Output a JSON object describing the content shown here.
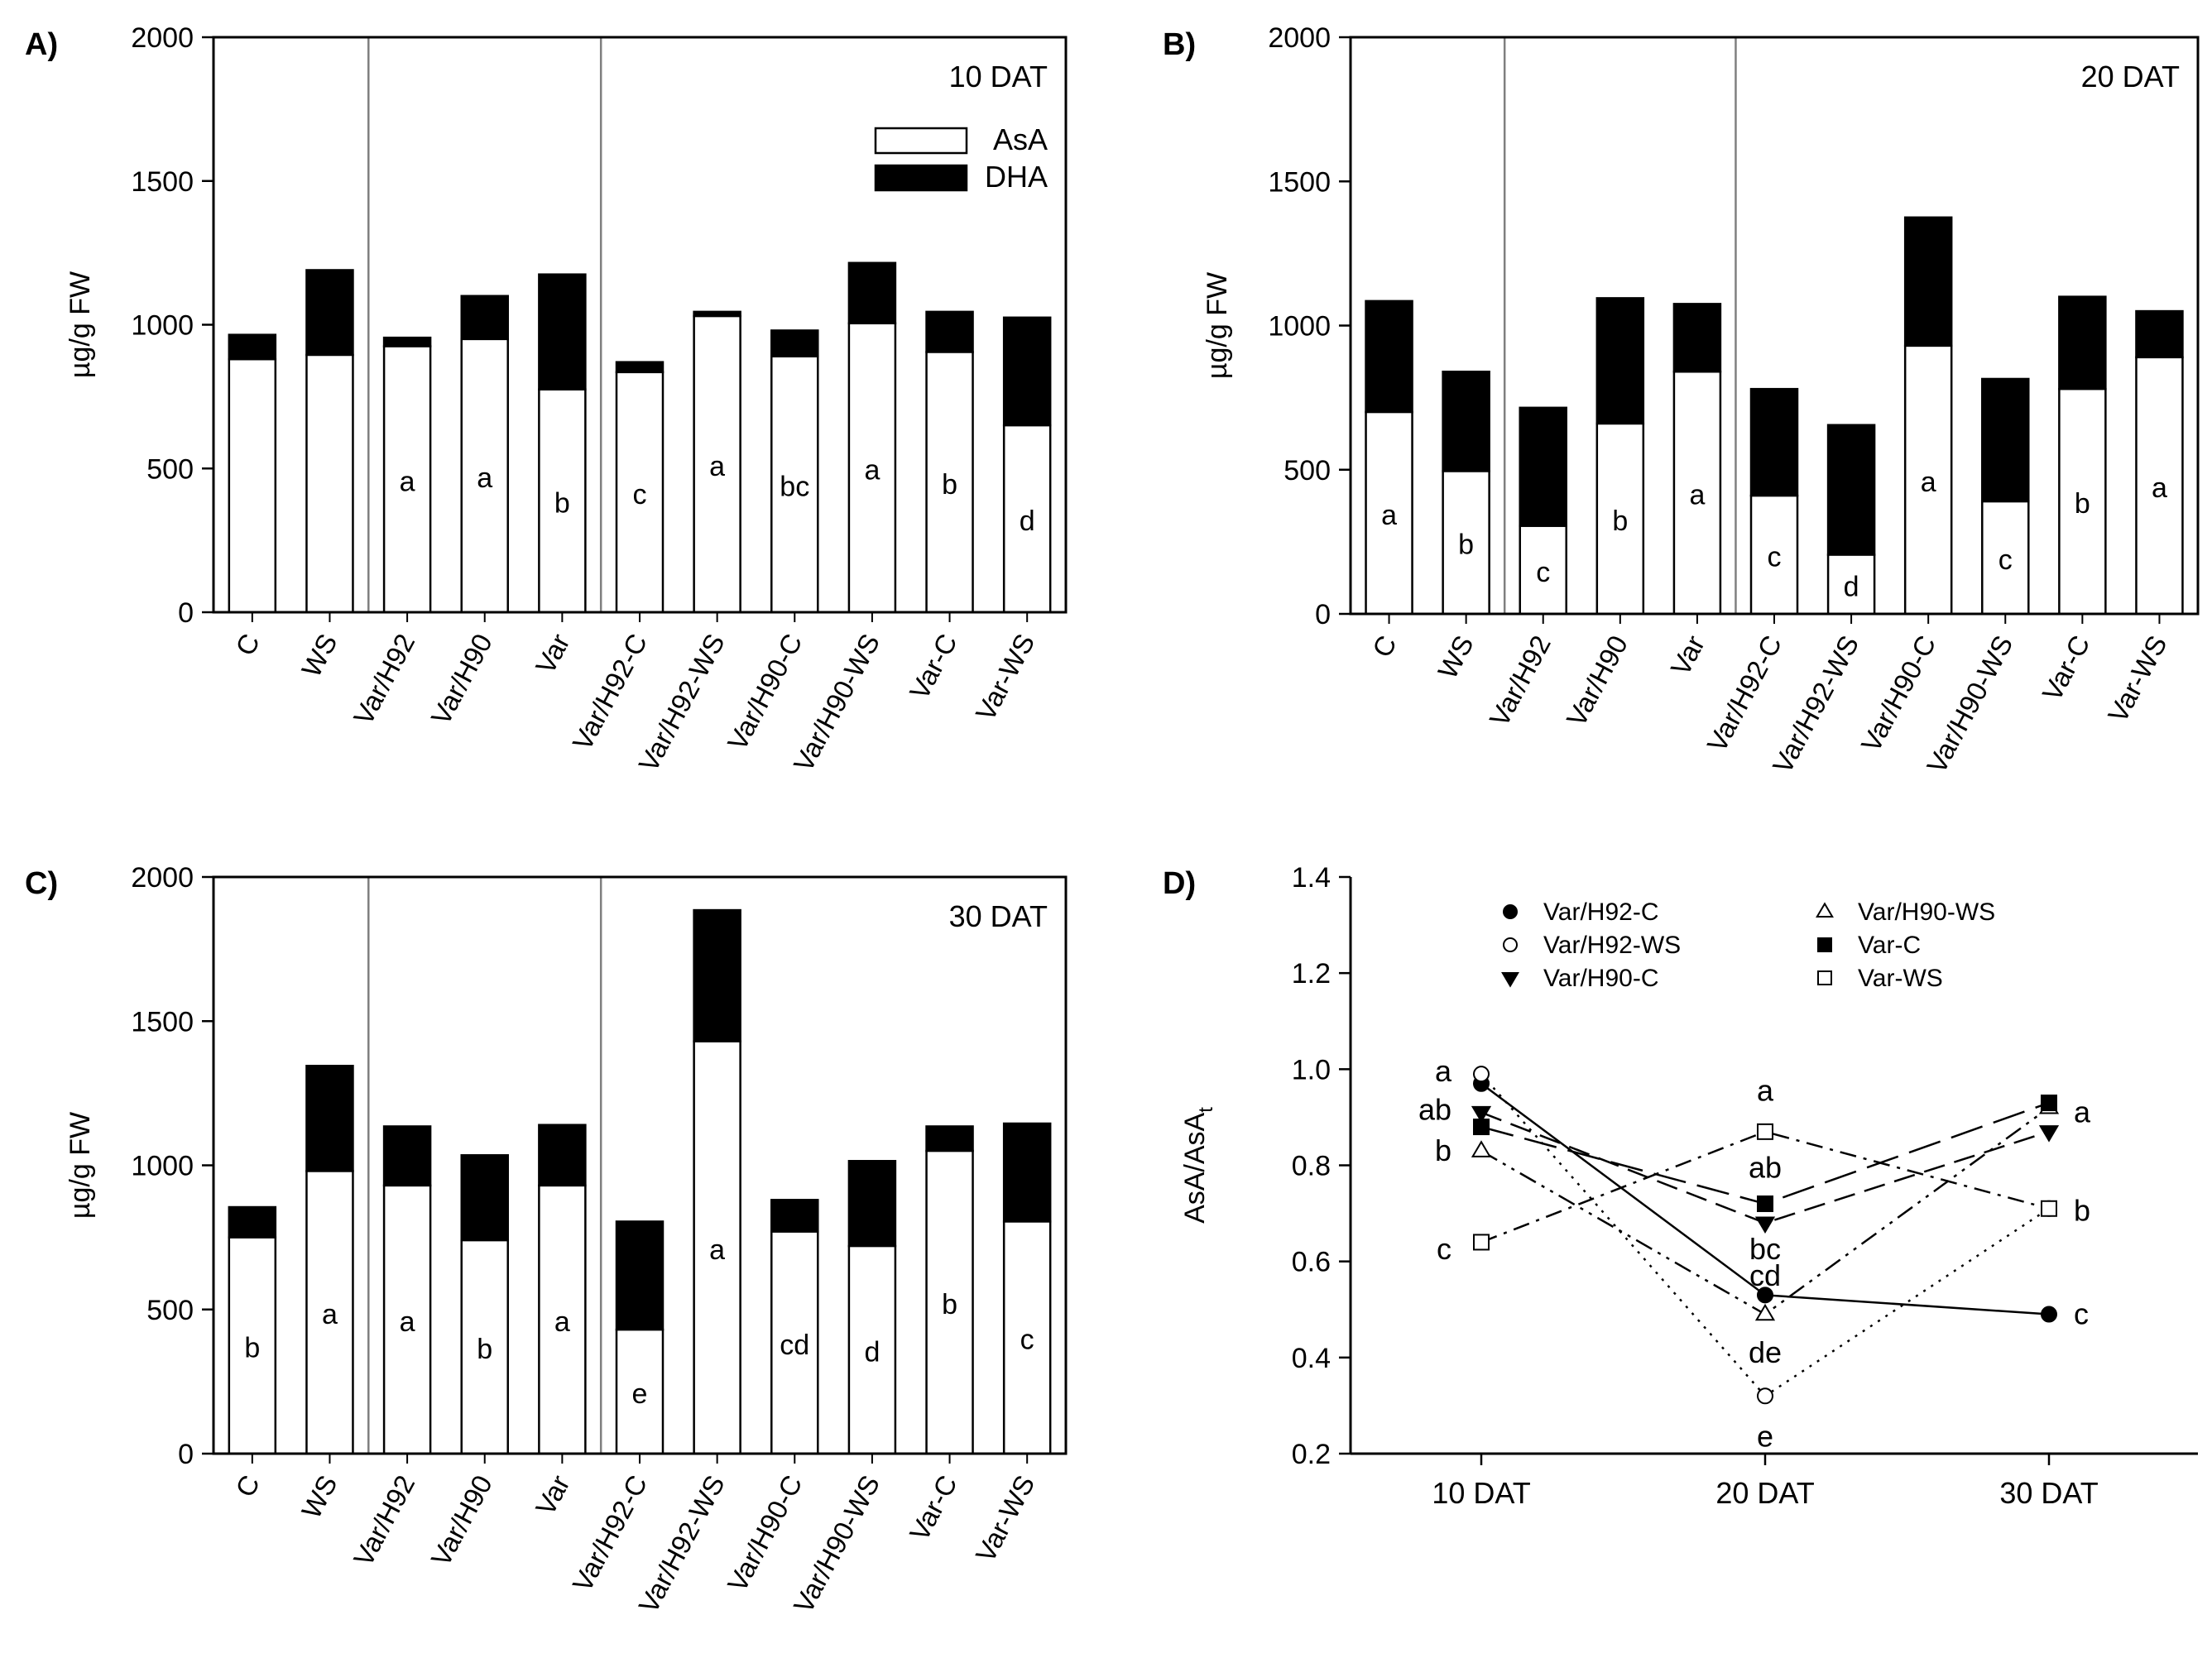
{
  "colors": {
    "axis": "#000000",
    "grid_separator": "#7f7f7f",
    "asa_fill": "#ffffff",
    "dha_fill": "#000000"
  },
  "chart_data": [
    {
      "panel": "A)",
      "type": "stacked-bar",
      "annotation": "10 DAT",
      "ylabel": "µg/g FW",
      "ylim": [
        0,
        2000
      ],
      "yticks": [
        "0",
        "500",
        "1000",
        "1500",
        "2000"
      ],
      "legend": {
        "position": "top-right",
        "entries": [
          "AsA",
          "DHA"
        ]
      },
      "categories": [
        "C",
        "WS",
        "Var/H92",
        "Var/H90",
        "Var",
        "Var/H92-C",
        "Var/H92-WS",
        "Var/H90-C",
        "Var/H90-WS",
        "Var-C",
        "Var-WS"
      ],
      "group_separators_after": [
        2,
        5
      ],
      "series": [
        {
          "name": "AsA",
          "values": [
            880,
            895,
            925,
            950,
            775,
            835,
            1030,
            890,
            1005,
            905,
            650
          ]
        },
        {
          "name": "DHA",
          "values": [
            85,
            295,
            30,
            150,
            400,
            35,
            15,
            90,
            210,
            140,
            375
          ]
        }
      ],
      "letters": [
        "",
        "",
        "a",
        "a",
        "b",
        "c",
        "a",
        "bc",
        "a",
        "b",
        "d"
      ]
    },
    {
      "panel": "B)",
      "type": "stacked-bar",
      "annotation": "20 DAT",
      "ylabel": "µg/g FW",
      "ylim": [
        0,
        2000
      ],
      "yticks": [
        "0",
        "500",
        "1000",
        "1500",
        "2000"
      ],
      "categories": [
        "C",
        "WS",
        "Var/H92",
        "Var/H90",
        "Var",
        "Var/H92-C",
        "Var/H92-WS",
        "Var/H90-C",
        "Var/H90-WS",
        "Var-C",
        "Var-WS"
      ],
      "group_separators_after": [
        2,
        5
      ],
      "series": [
        {
          "name": "AsA",
          "values": [
            700,
            495,
            305,
            660,
            840,
            410,
            205,
            930,
            390,
            780,
            890
          ]
        },
        {
          "name": "DHA",
          "values": [
            385,
            345,
            410,
            435,
            235,
            370,
            450,
            445,
            425,
            320,
            160
          ]
        }
      ],
      "letters": [
        "a",
        "b",
        "c",
        "b",
        "a",
        "c",
        "d",
        "a",
        "c",
        "b",
        "a"
      ]
    },
    {
      "panel": "C)",
      "type": "stacked-bar",
      "annotation": "30 DAT",
      "ylabel": "µg/g FW",
      "ylim": [
        0,
        2000
      ],
      "yticks": [
        "0",
        "500",
        "1000",
        "1500",
        "2000"
      ],
      "categories": [
        "C",
        "WS",
        "Var/H92",
        "Var/H90",
        "Var",
        "Var/H92-C",
        "Var/H92-WS",
        "Var/H90-C",
        "Var/H90-WS",
        "Var-C",
        "Var-WS"
      ],
      "group_separators_after": [
        2,
        5
      ],
      "series": [
        {
          "name": "AsA",
          "values": [
            750,
            980,
            930,
            740,
            930,
            430,
            1430,
            770,
            720,
            1050,
            805
          ]
        },
        {
          "name": "DHA",
          "values": [
            105,
            365,
            205,
            295,
            210,
            375,
            455,
            110,
            295,
            85,
            340
          ]
        }
      ],
      "letters": [
        "b",
        "a",
        "a",
        "b",
        "a",
        "e",
        "a",
        "cd",
        "d",
        "b",
        "c"
      ]
    },
    {
      "panel": "D)",
      "type": "line",
      "ylabel_main": "AsA/AsA",
      "ylabel_sub": "t",
      "ylim": [
        0.2,
        1.4
      ],
      "yticks": [
        "0.2",
        "0.4",
        "0.6",
        "0.8",
        "1.0",
        "1.2",
        "1.4"
      ],
      "x": [
        "10 DAT",
        "20 DAT",
        "30 DAT"
      ],
      "series": [
        {
          "name": "Var/H92-C",
          "marker": "filled-circle",
          "line": "solid",
          "values": [
            0.97,
            0.53,
            0.49
          ]
        },
        {
          "name": "Var/H92-WS",
          "marker": "open-circle",
          "line": "dotted",
          "values": [
            0.99,
            0.32,
            0.71
          ]
        },
        {
          "name": "Var/H90-C",
          "marker": "filled-triangle-down",
          "line": "dash",
          "values": [
            0.91,
            0.68,
            0.87
          ]
        },
        {
          "name": "Var/H90-WS",
          "marker": "open-triangle-up",
          "line": "dash-dot-dot",
          "values": [
            0.83,
            0.49,
            0.92
          ]
        },
        {
          "name": "Var-C",
          "marker": "filled-square",
          "line": "long-dash",
          "values": [
            0.88,
            0.72,
            0.93
          ]
        },
        {
          "name": "Var-WS",
          "marker": "open-square",
          "line": "dash-dot",
          "values": [
            0.64,
            0.87,
            0.71
          ]
        }
      ],
      "letters": [
        {
          "text": "a",
          "xi": 0,
          "y": 0.995
        },
        {
          "text": "ab",
          "xi": 0,
          "y": 0.915
        },
        {
          "text": "b",
          "xi": 0,
          "y": 0.83
        },
        {
          "text": "c",
          "xi": 0,
          "y": 0.625
        },
        {
          "text": "a",
          "xi": 1,
          "y": 0.955
        },
        {
          "text": "ab",
          "xi": 1,
          "y": 0.795
        },
        {
          "text": "bc",
          "xi": 1,
          "y": 0.625
        },
        {
          "text": "cd",
          "xi": 1,
          "y": 0.57
        },
        {
          "text": "de",
          "xi": 1,
          "y": 0.41
        },
        {
          "text": "e",
          "xi": 1,
          "y": 0.235
        },
        {
          "text": "a",
          "xi": 2,
          "y": 0.91
        },
        {
          "text": "b",
          "xi": 2,
          "y": 0.705
        },
        {
          "text": "c",
          "xi": 2,
          "y": 0.49
        }
      ]
    }
  ]
}
